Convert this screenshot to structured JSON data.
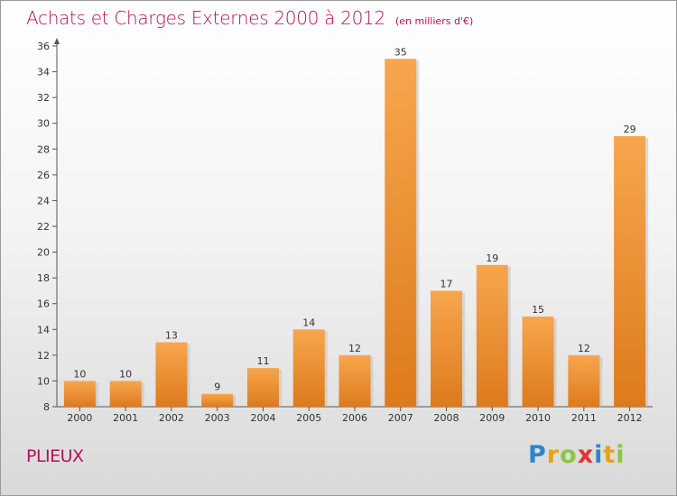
{
  "title": "Achats et Charges Externes 2000 à 2012",
  "unit_note": "(en milliers d'€)",
  "commune": "PLIEUX",
  "logo": {
    "letters": [
      "P",
      "r",
      "o",
      "x",
      "i",
      "t",
      "i"
    ],
    "colors": [
      "#2e86c9",
      "#e6a21a",
      "#8cc63f",
      "#e2342c",
      "#2e86c9",
      "#e6a21a",
      "#8cc63f"
    ]
  },
  "colors": {
    "title": "#b5105a",
    "bar_light": "#f7a64e",
    "bar_dark": "#dd7a1c",
    "axis": "#555555"
  },
  "chart_data": {
    "type": "bar",
    "categories": [
      "2000",
      "2001",
      "2002",
      "2003",
      "2004",
      "2005",
      "2006",
      "2007",
      "2008",
      "2009",
      "2010",
      "2011",
      "2012"
    ],
    "values": [
      10,
      10,
      13,
      9,
      11,
      14,
      12,
      35,
      17,
      19,
      15,
      12,
      29
    ],
    "ylim": [
      8,
      36
    ],
    "yticks": [
      8,
      10,
      12,
      14,
      16,
      18,
      20,
      22,
      24,
      26,
      28,
      30,
      32,
      34,
      36
    ],
    "grid": false,
    "data_labels": true
  }
}
